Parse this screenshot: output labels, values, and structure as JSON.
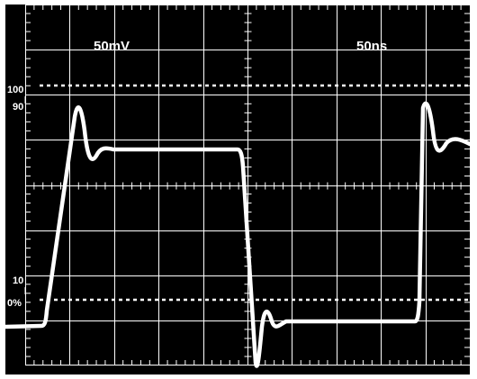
{
  "scope": {
    "volts_per_div": "50mV",
    "time_per_div": "50ns",
    "ref_label_100": "100",
    "ref_label_90": "90",
    "ref_label_10": "10",
    "ref_label_0": "0%"
  },
  "colors": {
    "background": "#000000",
    "grid": "#ffffff",
    "trace": "#ffffff"
  }
}
